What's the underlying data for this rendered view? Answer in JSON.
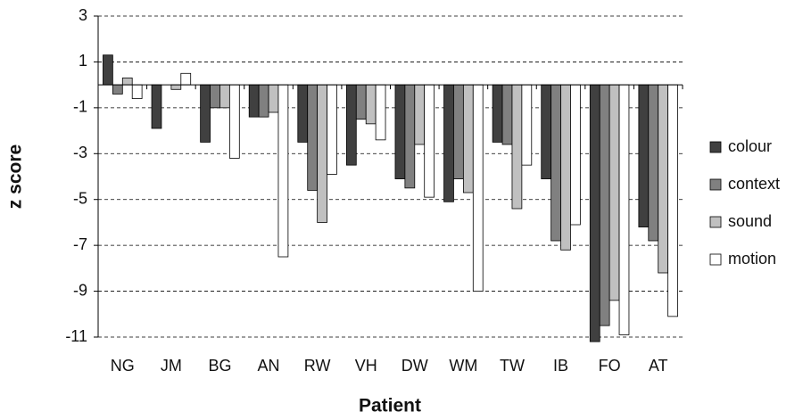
{
  "chart_data": {
    "type": "bar",
    "x_label": "Patient",
    "y_label": "z score",
    "categories": [
      "NG",
      "JM",
      "BG",
      "AN",
      "RW",
      "VH",
      "DW",
      "WM",
      "TW",
      "IB",
      "FO",
      "AT"
    ],
    "series": [
      {
        "name": "colour",
        "color": "#404040",
        "values": [
          1.3,
          -1.9,
          -2.5,
          -1.4,
          -2.5,
          -3.5,
          -4.1,
          -5.1,
          -2.5,
          -4.1,
          -11.2,
          -6.2
        ]
      },
      {
        "name": "context",
        "color": "#808080",
        "values": [
          -0.4,
          0,
          -1.0,
          -1.4,
          -4.6,
          -1.5,
          -4.5,
          -4.1,
          -2.6,
          -6.8,
          -10.5,
          -6.8
        ]
      },
      {
        "name": "sound",
        "color": "#c0c0c0",
        "values": [
          0.3,
          -0.2,
          -1.0,
          -1.2,
          -6.0,
          -1.7,
          -2.6,
          -4.7,
          -5.4,
          -7.2,
          -9.4,
          -8.2
        ]
      },
      {
        "name": "motion",
        "color": "#ffffff",
        "values": [
          -0.6,
          0.5,
          -3.2,
          -7.5,
          -3.9,
          -2.4,
          -4.9,
          -9.0,
          -3.5,
          -6.1,
          -10.9,
          -10.1
        ]
      }
    ],
    "ylim": [
      -11,
      3
    ],
    "yticks": [
      3,
      1,
      -1,
      -3,
      -5,
      -7,
      -9,
      -11
    ],
    "grid": true,
    "legend": "right"
  }
}
